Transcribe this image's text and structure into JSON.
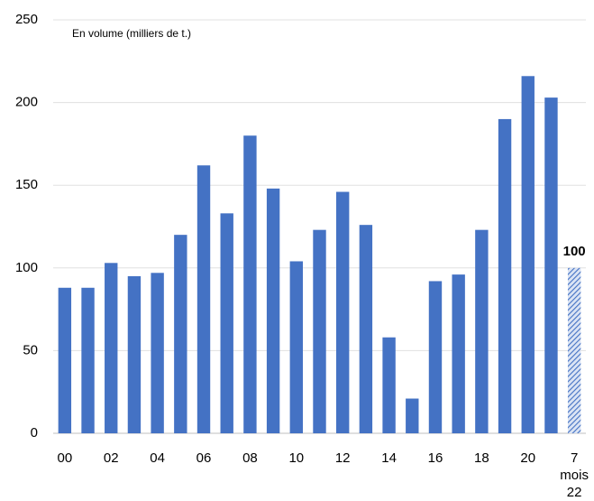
{
  "chart_data": {
    "type": "bar",
    "annotation": "En volume (milliers de t.)",
    "categories": [
      "00",
      null,
      "02",
      null,
      "04",
      null,
      "06",
      null,
      "08",
      null,
      "10",
      null,
      "12",
      null,
      "14",
      null,
      "16",
      null,
      "18",
      null,
      "20",
      null,
      "7 mois 22"
    ],
    "values": [
      88,
      88,
      103,
      95,
      97,
      120,
      162,
      133,
      180,
      148,
      104,
      123,
      146,
      126,
      58,
      21,
      92,
      96,
      123,
      190,
      216,
      203,
      100
    ],
    "bar_styles": [
      "solid",
      "solid",
      "solid",
      "solid",
      "solid",
      "solid",
      "solid",
      "solid",
      "solid",
      "solid",
      "solid",
      "solid",
      "solid",
      "solid",
      "solid",
      "solid",
      "solid",
      "solid",
      "solid",
      "solid",
      "solid",
      "solid",
      "hatched"
    ],
    "color": "#4472c4",
    "ylim": [
      0,
      250
    ],
    "yticks": [
      0,
      50,
      100,
      150,
      200,
      250
    ],
    "grid": true
  }
}
